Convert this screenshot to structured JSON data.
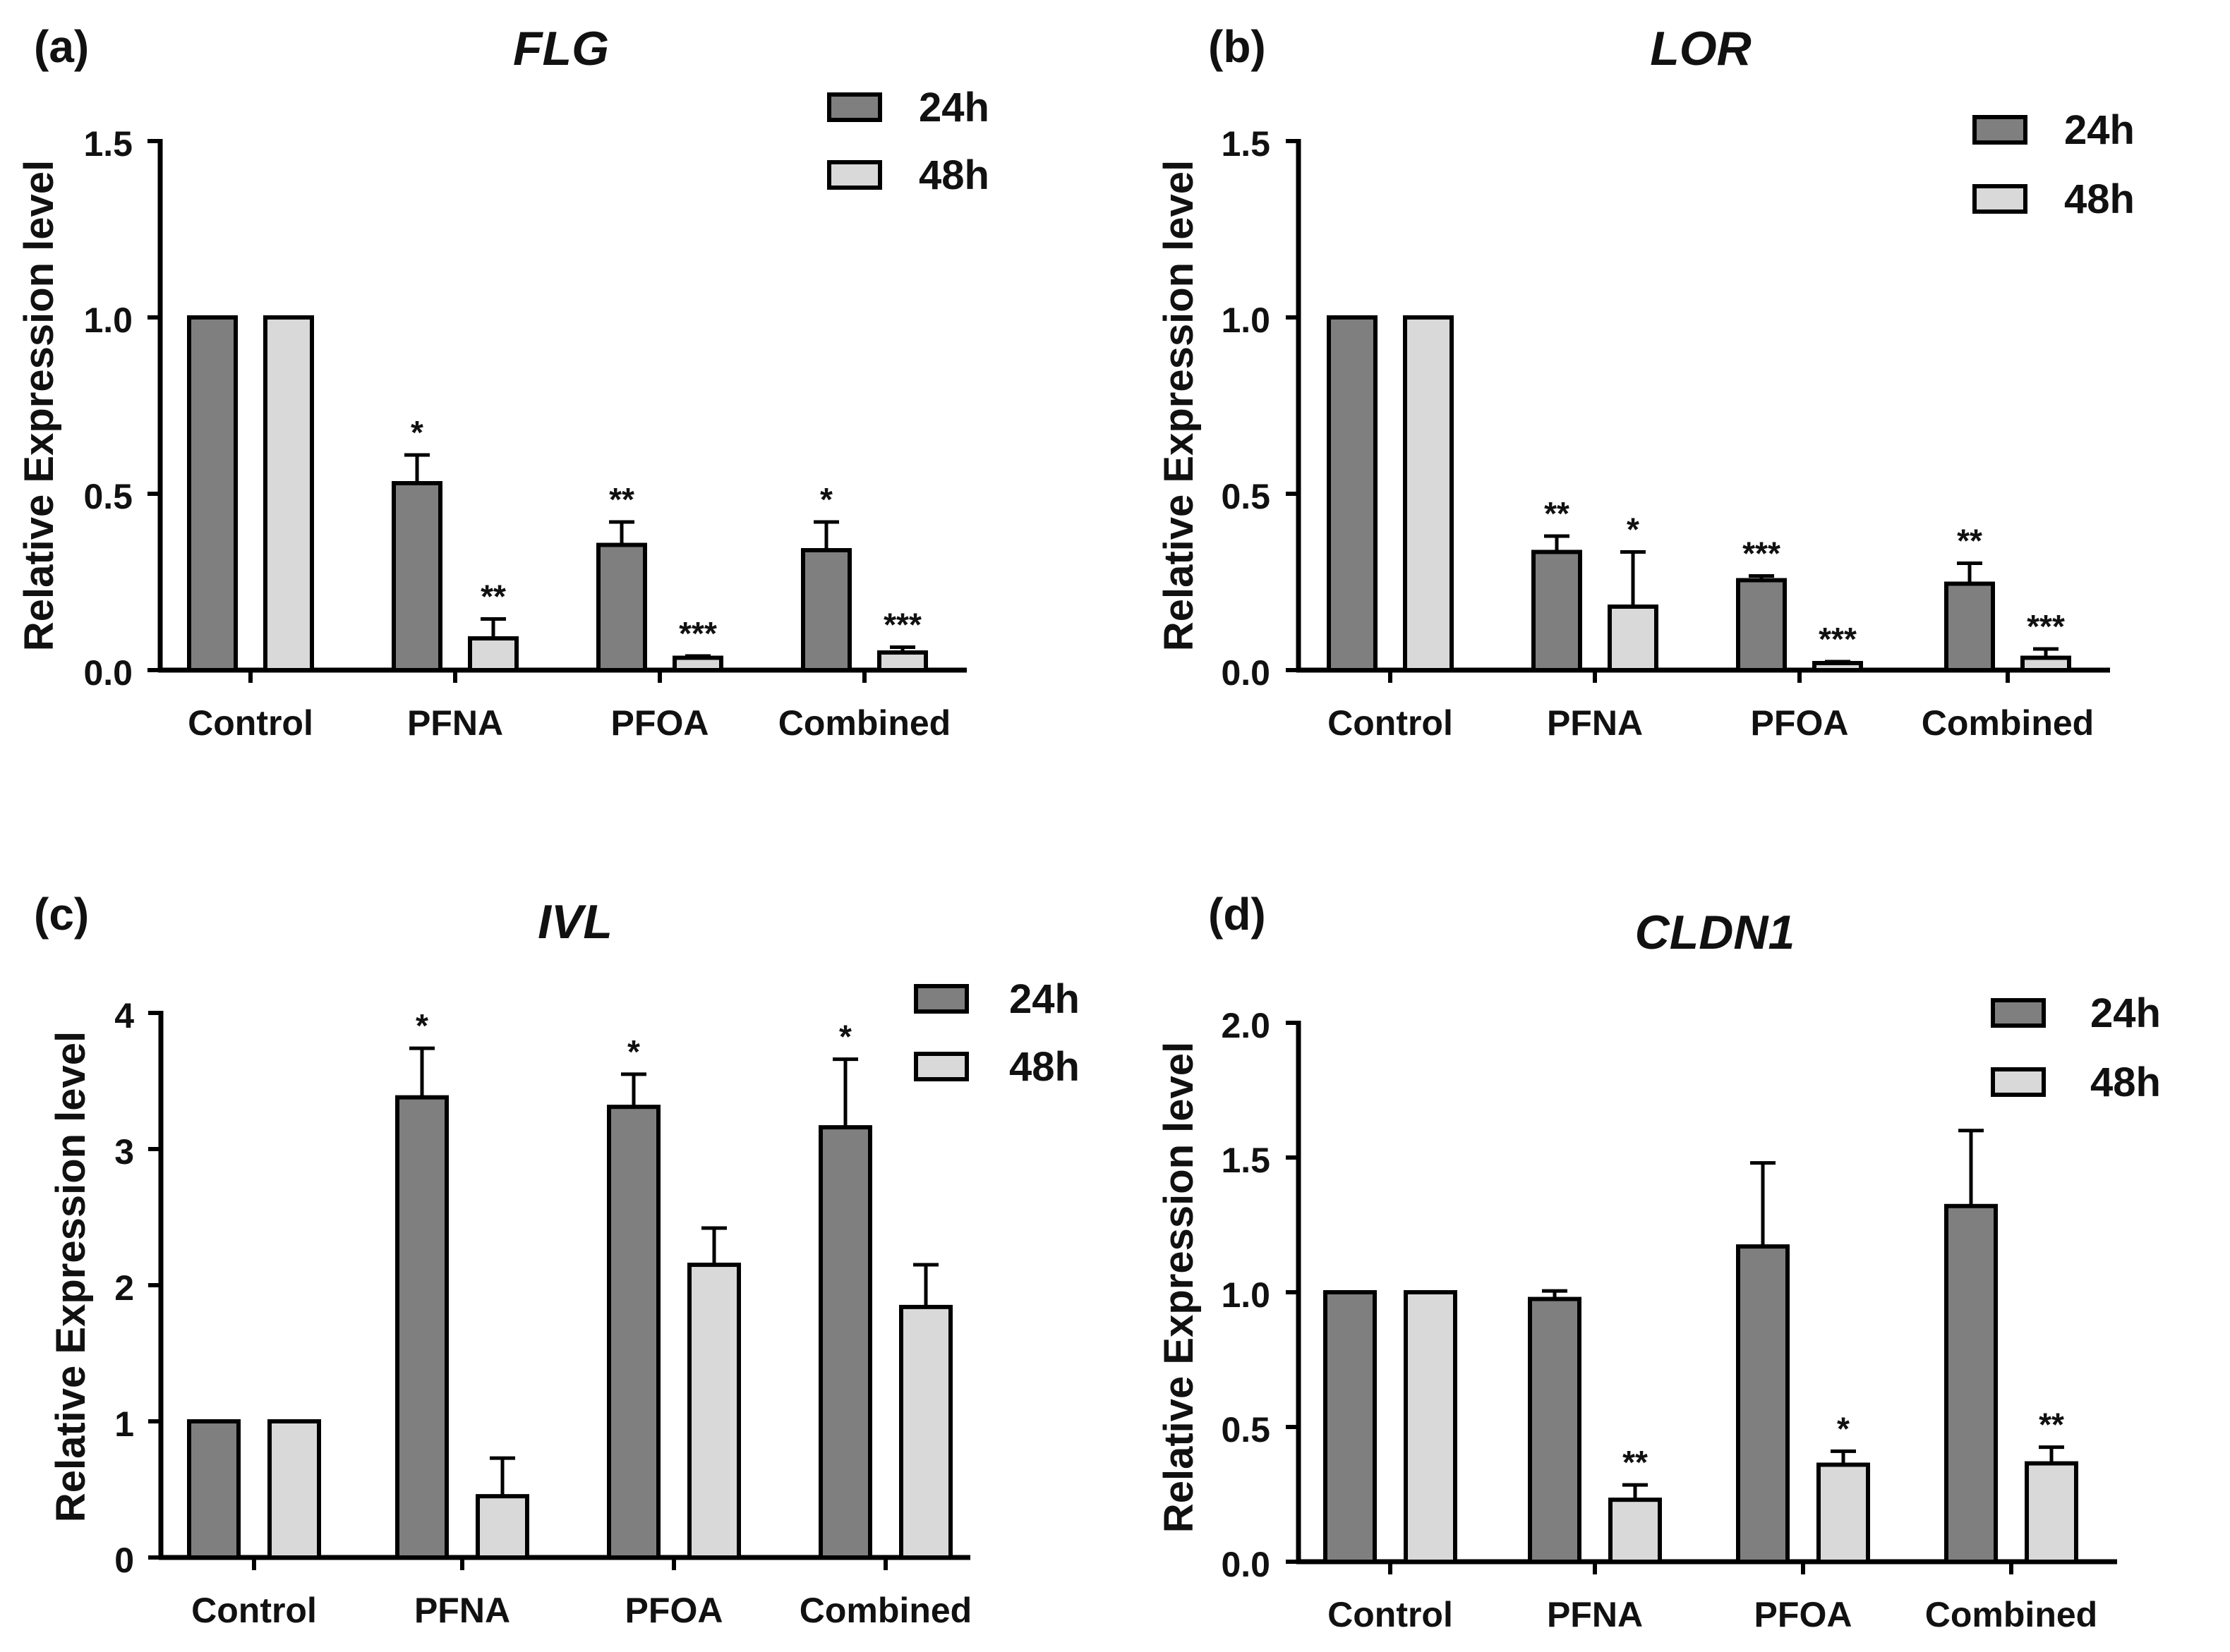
{
  "colors": {
    "h24": "#7f7f7f",
    "h48": "#d9d9d9",
    "stroke": "#000000"
  },
  "chart_data": [
    {
      "type": "bar",
      "panel": "(a)",
      "title": "FLG",
      "ylabel": "Relative Expression level",
      "xlabel": "",
      "ylim": [
        0,
        1.5
      ],
      "yticks": [
        "0.0",
        "0.5",
        "1.0",
        "1.5"
      ],
      "categories": [
        "Control",
        "PFNA",
        "PFOA",
        "Combined"
      ],
      "series": [
        {
          "name": "24h",
          "values": [
            1.0,
            0.53,
            0.355,
            0.34
          ],
          "errors": [
            0,
            0.08,
            0.065,
            0.08
          ],
          "sig": [
            "",
            "*",
            "**",
            "*"
          ]
        },
        {
          "name": "48h",
          "values": [
            1.0,
            0.09,
            0.035,
            0.05
          ],
          "errors": [
            0,
            0.055,
            0.005,
            0.015
          ],
          "sig": [
            "",
            "**",
            "***",
            "***"
          ]
        }
      ],
      "legend": "top-right"
    },
    {
      "type": "bar",
      "panel": "(b)",
      "title": "LOR",
      "ylabel": "Relative Expression level",
      "xlabel": "",
      "ylim": [
        0,
        1.5
      ],
      "yticks": [
        "0.0",
        "0.5",
        "1.0",
        "1.5"
      ],
      "categories": [
        "Control",
        "PFNA",
        "PFOA",
        "Combined"
      ],
      "series": [
        {
          "name": "24h",
          "values": [
            1.0,
            0.335,
            0.255,
            0.245
          ],
          "errors": [
            0,
            0.045,
            0.012,
            0.058
          ],
          "sig": [
            "",
            "**",
            "***",
            "**"
          ]
        },
        {
          "name": "48h",
          "values": [
            1.0,
            0.18,
            0.02,
            0.035
          ],
          "errors": [
            0,
            0.155,
            0.004,
            0.025
          ],
          "sig": [
            "",
            "*",
            "***",
            "***"
          ]
        }
      ],
      "legend": "top-right"
    },
    {
      "type": "bar",
      "panel": "(c)",
      "title": "IVL",
      "ylabel": "Relative Expression level",
      "xlabel": "",
      "ylim": [
        0,
        4
      ],
      "yticks": [
        "0",
        "1",
        "2",
        "3",
        "4"
      ],
      "categories": [
        "Control",
        "PFNA",
        "PFOA",
        "Combined"
      ],
      "series": [
        {
          "name": "24h",
          "values": [
            1.0,
            3.38,
            3.31,
            3.16
          ],
          "errors": [
            0,
            0.36,
            0.24,
            0.5
          ],
          "sig": [
            "",
            "*",
            "*",
            "*"
          ]
        },
        {
          "name": "48h",
          "values": [
            1.0,
            0.45,
            2.15,
            1.84
          ],
          "errors": [
            0,
            0.28,
            0.27,
            0.31
          ],
          "sig": [
            "",
            "",
            "",
            ""
          ]
        }
      ],
      "legend": "top-right"
    },
    {
      "type": "bar",
      "panel": "(d)",
      "title": "CLDN1",
      "ylabel": "Relative Expression level",
      "xlabel": "",
      "ylim": [
        0,
        2.0
      ],
      "yticks": [
        "0.0",
        "0.5",
        "1.0",
        "1.5",
        "2.0"
      ],
      "categories": [
        "Control",
        "PFNA",
        "PFOA",
        "Combined"
      ],
      "series": [
        {
          "name": "24h",
          "values": [
            1.0,
            0.975,
            1.17,
            1.32
          ],
          "errors": [
            0,
            0.03,
            0.31,
            0.28
          ],
          "sig": [
            "",
            "",
            "",
            ""
          ]
        },
        {
          "name": "48h",
          "values": [
            1.0,
            0.23,
            0.36,
            0.365
          ],
          "errors": [
            0,
            0.055,
            0.05,
            0.06
          ],
          "sig": [
            "",
            "**",
            "*",
            "**"
          ]
        }
      ],
      "legend": "top-right"
    }
  ]
}
